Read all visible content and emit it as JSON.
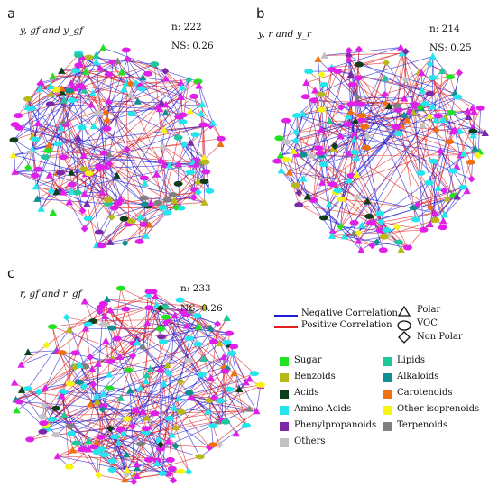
{
  "panels": [
    {
      "letter": "a",
      "subtitle": "y, gf and y_gf",
      "n": "n: 222",
      "ns": "NS: 0.26"
    },
    {
      "letter": "b",
      "subtitle": "y, r and y_r",
      "n": "n: 214",
      "ns": "NS: 0.25"
    },
    {
      "letter": "c",
      "subtitle": "r, gf and r_gf",
      "n": "n: 233",
      "ns": "NS: 0.26"
    }
  ],
  "legend": {
    "lines": [
      {
        "label": "Negative Correlation",
        "color": "#1f1fd6"
      },
      {
        "label": "Positive Correlation",
        "color": "#e02020"
      }
    ],
    "shapes": [
      {
        "label": "Polar",
        "icon": "triangle-icon"
      },
      {
        "label": "VOC",
        "icon": "ellipse-icon"
      },
      {
        "label": "Non Polar",
        "icon": "diamond-icon"
      }
    ],
    "categories_left": [
      {
        "label": "Sugar",
        "color": "#22e022"
      },
      {
        "label": "Benzoids",
        "color": "#b8b818"
      },
      {
        "label": "Acids",
        "color": "#0e3d1c"
      },
      {
        "label": "Amino Acids",
        "color": "#22e5ee"
      },
      {
        "label": "Phenylpropanoids",
        "color": "#7a2aa8"
      },
      {
        "label": "Others",
        "color": "#c2c2c2"
      }
    ],
    "categories_right": [
      {
        "label": "Lipids",
        "color": "#1fc79a"
      },
      {
        "label": "Alkaloids",
        "color": "#0f8f8f"
      },
      {
        "label": "Carotenoids",
        "color": "#f07010"
      },
      {
        "label": "Other isoprenoids",
        "color": "#f5f510"
      },
      {
        "label": "Terpenoids",
        "color": "#808080"
      }
    ]
  },
  "node_palette": [
    "#e020e8",
    "#22e5ee",
    "#22e022",
    "#b8b818",
    "#0e3d1c",
    "#1fc79a",
    "#0f8f8f",
    "#f07010",
    "#f5f510",
    "#808080",
    "#7a2aa8",
    "#c2c2c2"
  ]
}
